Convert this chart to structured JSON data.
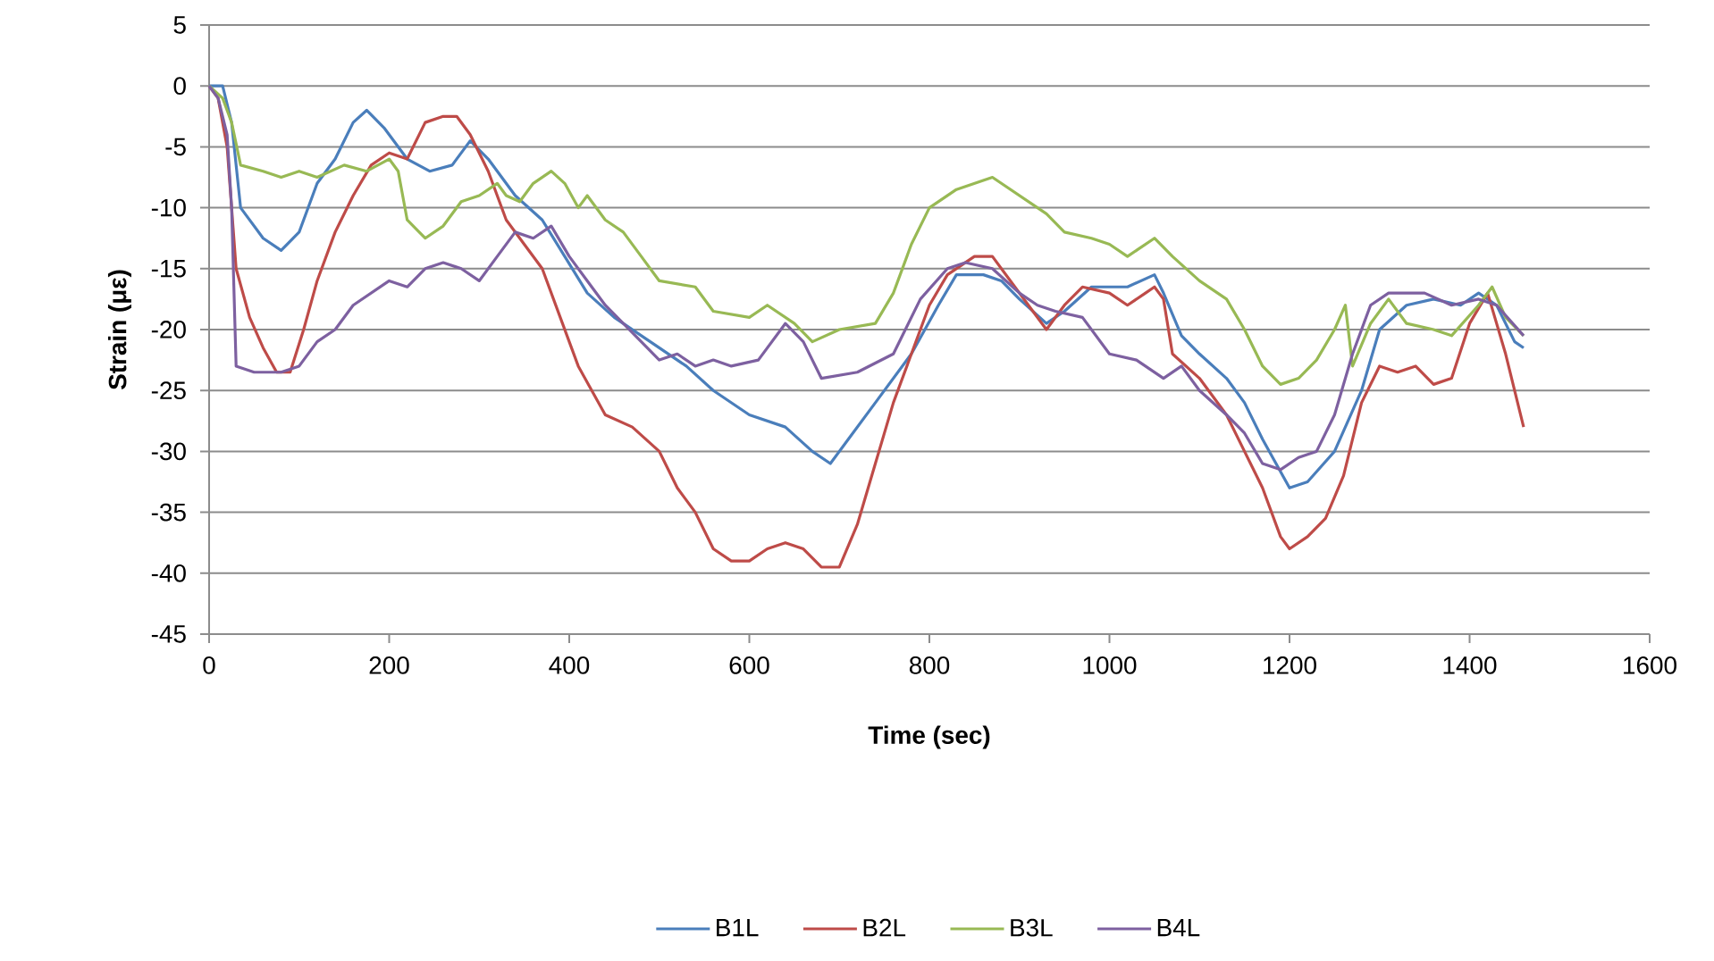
{
  "chart_data": {
    "type": "line",
    "xlabel": "Time (sec)",
    "ylabel": "Strain (με)",
    "xlim": [
      0,
      1600
    ],
    "xticks": [
      0,
      200,
      400,
      600,
      800,
      1000,
      1200,
      1400,
      1600
    ],
    "ylim": [
      -45,
      5
    ],
    "yticks": [
      -45,
      -40,
      -35,
      -30,
      -25,
      -20,
      -15,
      -10,
      -5,
      0,
      5
    ],
    "grid": "y",
    "legend": "bottom",
    "marker": "none",
    "line_style": "solid",
    "series": [
      {
        "name": "B1L",
        "color": "#4a7ebb",
        "x": [
          0,
          15,
          25,
          35,
          60,
          80,
          100,
          120,
          140,
          160,
          175,
          195,
          220,
          245,
          270,
          290,
          310,
          340,
          370,
          395,
          420,
          450,
          490,
          530,
          560,
          600,
          640,
          670,
          690,
          710,
          740,
          780,
          810,
          830,
          860,
          880,
          900,
          930,
          950,
          980,
          1020,
          1050,
          1060,
          1080,
          1100,
          1130,
          1150,
          1170,
          1200,
          1220,
          1250,
          1280,
          1300,
          1330,
          1360,
          1390,
          1410,
          1430,
          1450,
          1460
        ],
        "values": [
          0,
          0,
          -3,
          -10,
          -12.5,
          -13.5,
          -12,
          -8,
          -6,
          -3,
          -2,
          -3.5,
          -6,
          -7,
          -6.5,
          -4.5,
          -6,
          -9,
          -11,
          -14,
          -17,
          -19,
          -21,
          -23,
          -25,
          -27,
          -28,
          -30,
          -31,
          -29,
          -26,
          -22,
          -18,
          -15.5,
          -15.5,
          -16,
          -17.5,
          -19.5,
          -18.5,
          -16.5,
          -16.5,
          -15.5,
          -17,
          -20.5,
          -22,
          -24,
          -26,
          -29,
          -33,
          -32.5,
          -30,
          -25,
          -20,
          -18,
          -17.5,
          -18,
          -17,
          -18,
          -21,
          -21.5
        ]
      },
      {
        "name": "B2L",
        "color": "#be4b48",
        "x": [
          0,
          10,
          20,
          30,
          45,
          60,
          75,
          90,
          105,
          120,
          140,
          160,
          180,
          200,
          220,
          240,
          260,
          275,
          290,
          310,
          330,
          350,
          370,
          390,
          410,
          440,
          470,
          500,
          520,
          540,
          560,
          580,
          600,
          620,
          640,
          660,
          680,
          700,
          720,
          740,
          760,
          780,
          800,
          820,
          850,
          870,
          890,
          910,
          930,
          950,
          970,
          1000,
          1020,
          1040,
          1050,
          1060,
          1070,
          1100,
          1130,
          1150,
          1170,
          1190,
          1200,
          1220,
          1240,
          1260,
          1280,
          1300,
          1320,
          1340,
          1360,
          1380,
          1400,
          1420,
          1440,
          1460
        ],
        "values": [
          0,
          -1,
          -5,
          -15,
          -19,
          -21.5,
          -23.5,
          -23.5,
          -20,
          -16,
          -12,
          -9,
          -6.5,
          -5.5,
          -6,
          -3,
          -2.5,
          -2.5,
          -4,
          -7,
          -11,
          -13,
          -15,
          -19,
          -23,
          -27,
          -28,
          -30,
          -33,
          -35,
          -38,
          -39,
          -39,
          -38,
          -37.5,
          -38,
          -39.5,
          -39.5,
          -36,
          -31,
          -26,
          -22,
          -18,
          -15.5,
          -14,
          -14,
          -16,
          -18,
          -20,
          -18,
          -16.5,
          -17,
          -18,
          -17,
          -16.5,
          -17.5,
          -22,
          -24,
          -27,
          -30,
          -33,
          -37,
          -38,
          -37,
          -35.5,
          -32,
          -26,
          -23,
          -23.5,
          -23,
          -24.5,
          -24,
          -19.5,
          -17,
          -22,
          -28
        ]
      },
      {
        "name": "B3L",
        "color": "#98b954",
        "x": [
          0,
          15,
          25,
          35,
          60,
          80,
          100,
          120,
          150,
          175,
          200,
          210,
          220,
          240,
          260,
          280,
          300,
          320,
          330,
          345,
          360,
          380,
          395,
          410,
          420,
          440,
          460,
          480,
          500,
          540,
          560,
          600,
          620,
          650,
          670,
          700,
          740,
          760,
          780,
          800,
          830,
          850,
          870,
          900,
          930,
          950,
          980,
          1000,
          1020,
          1050,
          1070,
          1100,
          1130,
          1150,
          1170,
          1190,
          1210,
          1230,
          1250,
          1262,
          1270,
          1290,
          1310,
          1330,
          1360,
          1380,
          1410,
          1425,
          1440,
          1460
        ],
        "values": [
          0,
          -1,
          -3,
          -6.5,
          -7,
          -7.5,
          -7,
          -7.5,
          -6.5,
          -7,
          -6,
          -7,
          -11,
          -12.5,
          -11.5,
          -9.5,
          -9,
          -8,
          -9,
          -9.5,
          -8,
          -7,
          -8,
          -10,
          -9,
          -11,
          -12,
          -14,
          -16,
          -16.5,
          -18.5,
          -19,
          -18,
          -19.5,
          -21,
          -20,
          -19.5,
          -17,
          -13,
          -10,
          -8.5,
          -8,
          -7.5,
          -9,
          -10.5,
          -12,
          -12.5,
          -13,
          -14,
          -12.5,
          -14,
          -16,
          -17.5,
          -20,
          -23,
          -24.5,
          -24,
          -22.5,
          -20,
          -18,
          -23,
          -19.5,
          -17.5,
          -19.5,
          -20,
          -20.5,
          -18,
          -16.5,
          -19,
          -20.5
        ]
      },
      {
        "name": "B4L",
        "color": "#7d60a0",
        "x": [
          0,
          10,
          20,
          25,
          30,
          50,
          80,
          100,
          120,
          140,
          160,
          180,
          200,
          220,
          240,
          260,
          280,
          300,
          320,
          340,
          360,
          380,
          400,
          420,
          440,
          460,
          480,
          500,
          520,
          540,
          560,
          580,
          610,
          640,
          660,
          680,
          720,
          760,
          790,
          820,
          840,
          870,
          900,
          920,
          940,
          970,
          1000,
          1030,
          1060,
          1080,
          1100,
          1130,
          1150,
          1170,
          1190,
          1210,
          1230,
          1250,
          1270,
          1290,
          1310,
          1350,
          1380,
          1410,
          1430,
          1460
        ],
        "values": [
          0,
          -1,
          -4,
          -10,
          -23,
          -23.5,
          -23.5,
          -23,
          -21,
          -20,
          -18,
          -17,
          -16,
          -16.5,
          -15,
          -14.5,
          -15,
          -16,
          -14,
          -12,
          -12.5,
          -11.5,
          -14,
          -16,
          -18,
          -19.5,
          -21,
          -22.5,
          -22,
          -23,
          -22.5,
          -23,
          -22.5,
          -19.5,
          -21,
          -24,
          -23.5,
          -22,
          -17.5,
          -15,
          -14.5,
          -15,
          -17,
          -18,
          -18.5,
          -19,
          -22,
          -22.5,
          -24,
          -23,
          -25,
          -27,
          -28.5,
          -31,
          -31.5,
          -30.5,
          -30,
          -27,
          -22,
          -18,
          -17,
          -17,
          -18,
          -17.5,
          -18,
          -20.5
        ]
      }
    ]
  }
}
